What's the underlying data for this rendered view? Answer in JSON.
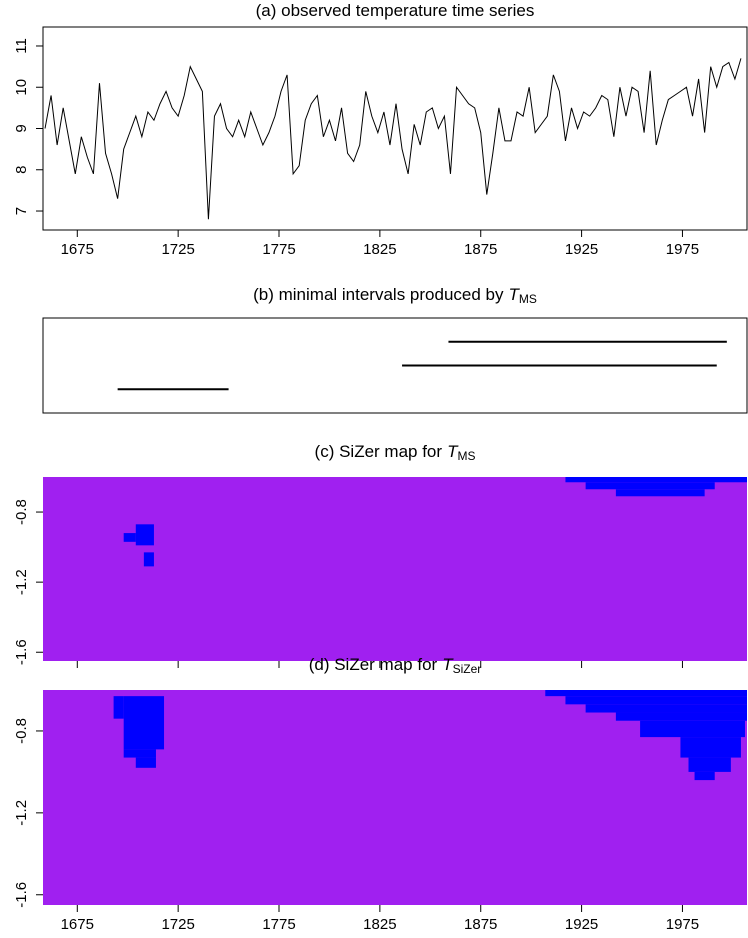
{
  "chart_data": [
    {
      "type": "line",
      "title": "(a) observed temperature time series",
      "color": "#000000",
      "x": [
        1659,
        1662,
        1665,
        1668,
        1671,
        1674,
        1677,
        1680,
        1683,
        1686,
        1689,
        1692,
        1695,
        1698,
        1701,
        1704,
        1707,
        1710,
        1713,
        1716,
        1719,
        1722,
        1725,
        1728,
        1731,
        1734,
        1737,
        1740,
        1743,
        1746,
        1749,
        1752,
        1755,
        1758,
        1761,
        1764,
        1767,
        1770,
        1773,
        1776,
        1779,
        1782,
        1785,
        1788,
        1791,
        1794,
        1797,
        1800,
        1803,
        1806,
        1809,
        1812,
        1815,
        1818,
        1821,
        1824,
        1827,
        1830,
        1833,
        1836,
        1839,
        1842,
        1845,
        1848,
        1851,
        1854,
        1857,
        1860,
        1863,
        1866,
        1869,
        1872,
        1875,
        1878,
        1881,
        1884,
        1887,
        1890,
        1893,
        1896,
        1899,
        1902,
        1905,
        1908,
        1911,
        1914,
        1917,
        1920,
        1923,
        1926,
        1929,
        1932,
        1935,
        1938,
        1941,
        1944,
        1947,
        1950,
        1953,
        1956,
        1959,
        1962,
        1965,
        1968,
        1971,
        1974,
        1977,
        1980,
        1983,
        1986,
        1989,
        1992,
        1995,
        1998,
        2001,
        2004
      ],
      "values": [
        9.0,
        9.8,
        8.6,
        9.5,
        8.7,
        7.9,
        8.8,
        8.3,
        7.9,
        10.1,
        8.4,
        7.9,
        7.3,
        8.5,
        8.9,
        9.3,
        8.8,
        9.4,
        9.2,
        9.6,
        9.9,
        9.5,
        9.3,
        9.8,
        10.5,
        10.2,
        9.9,
        6.8,
        9.3,
        9.6,
        9.0,
        8.8,
        9.2,
        8.8,
        9.4,
        9.0,
        8.6,
        8.9,
        9.3,
        9.9,
        10.3,
        7.9,
        8.1,
        9.2,
        9.6,
        9.8,
        8.8,
        9.2,
        8.7,
        9.5,
        8.4,
        8.2,
        8.6,
        9.9,
        9.3,
        8.9,
        9.4,
        8.6,
        9.6,
        8.5,
        7.9,
        9.1,
        8.6,
        9.4,
        9.5,
        9.0,
        9.3,
        7.9,
        10.0,
        9.8,
        9.6,
        9.5,
        8.9,
        7.4,
        8.4,
        9.5,
        8.7,
        8.7,
        9.4,
        9.3,
        10.0,
        8.9,
        9.1,
        9.3,
        10.3,
        9.9,
        8.7,
        9.5,
        9.0,
        9.4,
        9.3,
        9.5,
        9.8,
        9.7,
        8.8,
        10.0,
        9.3,
        10.0,
        9.9,
        8.9,
        10.4,
        8.6,
        9.2,
        9.7,
        9.8,
        9.9,
        10.0,
        9.3,
        10.2,
        8.9,
        10.5,
        10.0,
        10.5,
        10.6,
        10.2,
        10.7
      ],
      "xlim": [
        1658,
        2007
      ],
      "ylim": [
        6.54,
        11.46
      ],
      "xticks": [
        1675,
        1725,
        1775,
        1825,
        1875,
        1925,
        1975
      ],
      "yticks": [
        7,
        8,
        9,
        10,
        11
      ]
    },
    {
      "type": "interval",
      "title": "(b) minimal intervals produced by",
      "title_symbol": "T",
      "title_subscript": "MS",
      "color": "#000000",
      "xlim": [
        1658,
        2007
      ],
      "intervals": [
        [
          1695,
          1750
        ],
        [
          1836,
          1992
        ],
        [
          1859,
          1997
        ]
      ]
    },
    {
      "type": "heatmap",
      "title": "(c) SiZer map for",
      "title_symbol": "T",
      "title_subscript": "MS",
      "background_color": "#a020f0",
      "color": "#0000ff",
      "xlim": [
        1658,
        2007
      ],
      "ylim": [
        -1.65,
        -0.6
      ],
      "xticks": [
        1675,
        1725,
        1775,
        1825,
        1875,
        1925,
        1975
      ],
      "tick_labels": false,
      "yticks": [
        -0.8,
        -1.2,
        -1.6
      ],
      "regions": [
        {
          "x": [
            1917,
            2007
          ],
          "y": [
            -0.63,
            -0.6
          ]
        },
        {
          "x": [
            1927,
            1991
          ],
          "y": [
            -0.67,
            -0.63
          ]
        },
        {
          "x": [
            1942,
            1986
          ],
          "y": [
            -0.71,
            -0.67
          ]
        },
        {
          "x": [
            1704,
            1713
          ],
          "y": [
            -0.99,
            -0.87
          ]
        },
        {
          "x": [
            1698,
            1704
          ],
          "y": [
            -0.97,
            -0.92
          ]
        },
        {
          "x": [
            1708,
            1713
          ],
          "y": [
            -1.11,
            -1.03
          ]
        }
      ]
    },
    {
      "type": "heatmap",
      "title": "(d) SiZer map for",
      "title_symbol": "T",
      "title_subscript": "SiZer",
      "background_color": "#a020f0",
      "color": "#0000ff",
      "xlim": [
        1658,
        2007
      ],
      "ylim": [
        -1.65,
        -0.6
      ],
      "xticks": [
        1675,
        1725,
        1775,
        1825,
        1875,
        1925,
        1975
      ],
      "tick_labels": true,
      "yticks": [
        -0.8,
        -1.2,
        -1.6
      ],
      "regions": [
        {
          "x": [
            1907,
            2007
          ],
          "y": [
            -0.63,
            -0.6
          ]
        },
        {
          "x": [
            1917,
            2007
          ],
          "y": [
            -0.67,
            -0.63
          ]
        },
        {
          "x": [
            1927,
            2007
          ],
          "y": [
            -0.71,
            -0.67
          ]
        },
        {
          "x": [
            1942,
            2007
          ],
          "y": [
            -0.75,
            -0.71
          ]
        },
        {
          "x": [
            1954,
            2006
          ],
          "y": [
            -0.83,
            -0.75
          ]
        },
        {
          "x": [
            1974,
            2004
          ],
          "y": [
            -0.93,
            -0.83
          ]
        },
        {
          "x": [
            1978,
            1999
          ],
          "y": [
            -1.0,
            -0.93
          ]
        },
        {
          "x": [
            1981,
            1991
          ],
          "y": [
            -1.04,
            -1.0
          ]
        },
        {
          "x": [
            1698,
            1718
          ],
          "y": [
            -0.89,
            -0.63
          ]
        },
        {
          "x": [
            1693,
            1698
          ],
          "y": [
            -0.74,
            -0.63
          ]
        },
        {
          "x": [
            1698,
            1714
          ],
          "y": [
            -0.93,
            -0.89
          ]
        },
        {
          "x": [
            1704,
            1714
          ],
          "y": [
            -0.98,
            -0.93
          ]
        }
      ]
    }
  ]
}
